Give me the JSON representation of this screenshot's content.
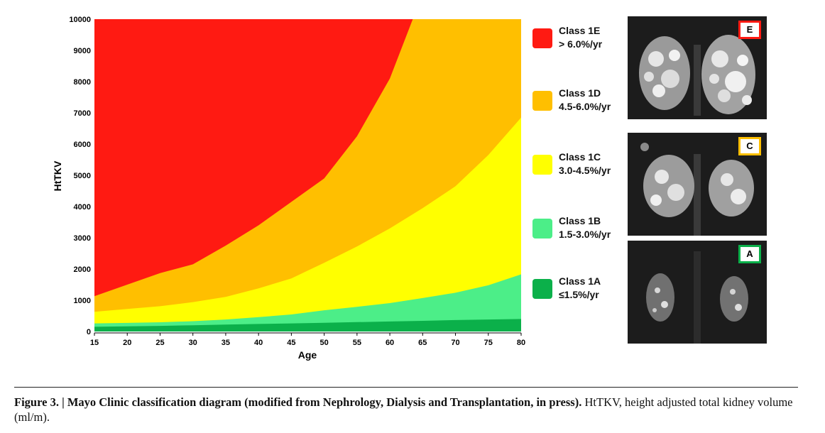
{
  "chart_data": {
    "type": "area",
    "title": "",
    "xlabel": "Age",
    "ylabel": "HtTKV",
    "xlim": [
      15,
      80
    ],
    "ylim": [
      0,
      10000
    ],
    "x_ticks": [
      15,
      20,
      25,
      30,
      35,
      40,
      45,
      50,
      55,
      60,
      65,
      70,
      75,
      80
    ],
    "y_ticks": [
      0,
      1000,
      2000,
      3000,
      4000,
      5000,
      6000,
      7000,
      8000,
      9000,
      10000
    ],
    "boundaries": [
      {
        "between": "Class 1A / Class 1B",
        "points": [
          [
            15,
            150
          ],
          [
            20,
            165
          ],
          [
            25,
            180
          ],
          [
            30,
            200
          ],
          [
            35,
            220
          ],
          [
            40,
            240
          ],
          [
            45,
            260
          ],
          [
            50,
            280
          ],
          [
            55,
            300
          ],
          [
            60,
            320
          ],
          [
            65,
            340
          ],
          [
            70,
            365
          ],
          [
            75,
            385
          ],
          [
            80,
            400
          ]
        ]
      },
      {
        "between": "Class 1B / Class 1C",
        "points": [
          [
            15,
            260
          ],
          [
            20,
            275
          ],
          [
            25,
            295
          ],
          [
            30,
            330
          ],
          [
            35,
            385
          ],
          [
            40,
            460
          ],
          [
            45,
            545
          ],
          [
            50,
            680
          ],
          [
            55,
            790
          ],
          [
            60,
            910
          ],
          [
            65,
            1070
          ],
          [
            70,
            1240
          ],
          [
            75,
            1480
          ],
          [
            80,
            1830
          ]
        ]
      },
      {
        "between": "Class 1C / Class 1D",
        "points": [
          [
            15,
            630
          ],
          [
            20,
            720
          ],
          [
            25,
            810
          ],
          [
            30,
            940
          ],
          [
            35,
            1110
          ],
          [
            40,
            1380
          ],
          [
            45,
            1700
          ],
          [
            50,
            2200
          ],
          [
            55,
            2720
          ],
          [
            60,
            3300
          ],
          [
            65,
            3950
          ],
          [
            70,
            4650
          ],
          [
            75,
            5650
          ],
          [
            80,
            6850
          ]
        ]
      },
      {
        "between": "Class 1D / Class 1E",
        "points": [
          [
            15,
            1130
          ],
          [
            20,
            1500
          ],
          [
            25,
            1870
          ],
          [
            30,
            2150
          ],
          [
            35,
            2750
          ],
          [
            40,
            3400
          ],
          [
            45,
            4150
          ],
          [
            50,
            4900
          ],
          [
            55,
            6250
          ],
          [
            60,
            8100
          ],
          [
            63.5,
            10000
          ]
        ]
      }
    ],
    "series": [
      {
        "name": "Class 1A",
        "rate": "≤1.5%/yr",
        "color": "#0bb04a"
      },
      {
        "name": "Class 1B",
        "rate": "1.5-3.0%/yr",
        "color": "#4cee88"
      },
      {
        "name": "Class 1C",
        "rate": "3.0-4.5%/yr",
        "color": "#ffff00"
      },
      {
        "name": "Class 1D",
        "rate": "4.5-6.0%/yr",
        "color": "#ffbf00"
      },
      {
        "name": "Class 1E",
        "rate": "> 6.0%/yr",
        "color": "#ff1a12"
      }
    ],
    "legend_position": "right",
    "grid": false
  },
  "images": [
    {
      "label": "E",
      "color": "#ff1a12"
    },
    {
      "label": "C",
      "color": "#ffbf00"
    },
    {
      "label": "A",
      "color": "#0bb04a"
    }
  ],
  "caption": {
    "bold": "Figure 3. | Mayo Clinic classification diagram (modified from Nephrology, Dialysis and Transplantation, in press).",
    "normal": " HtTKV, height adjusted total kidney volume (ml/m)."
  }
}
